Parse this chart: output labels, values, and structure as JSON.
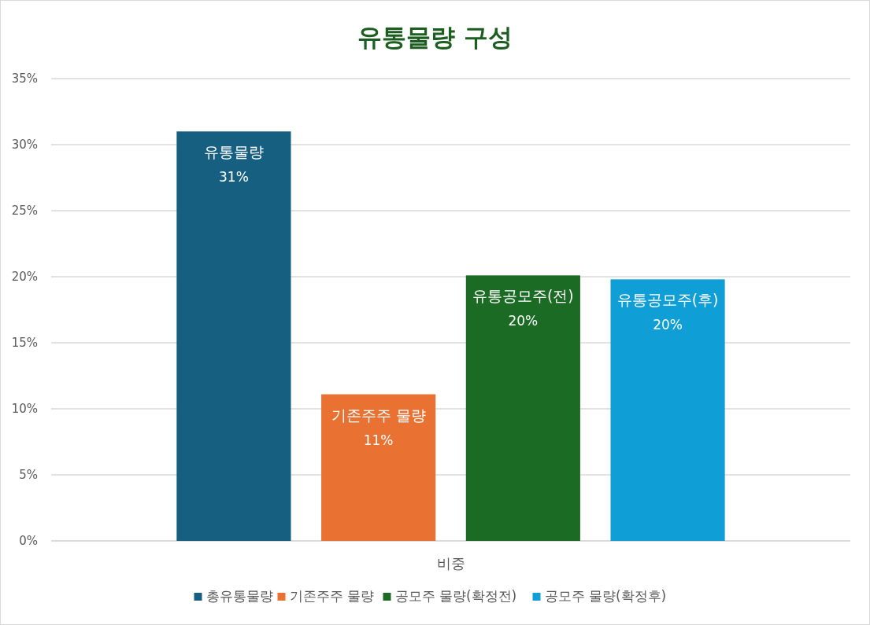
{
  "chart_data": {
    "type": "bar",
    "title": "유통물량 구성",
    "categories": [
      "비중"
    ],
    "series": [
      {
        "name": "총유통물량",
        "color": "#175f80",
        "values": [
          31
        ],
        "value_labels": [
          "유통물량\n31%"
        ]
      },
      {
        "name": "기존주주 물량",
        "color": "#e97132",
        "values": [
          11.1
        ],
        "value_labels": [
          "기존주주 물량\n11%"
        ]
      },
      {
        "name": "공모주 물량(확정전)",
        "color": "#1b6b24",
        "values": [
          20.1
        ],
        "value_labels": [
          "유통공모주(전)\n20%"
        ]
      },
      {
        "name": "공모주 물량(확정후)",
        "color": "#0f9ed5",
        "values": [
          19.8
        ],
        "value_labels": [
          "유통공모주(후)\n20%"
        ]
      }
    ],
    "ylim": [
      0,
      35
    ],
    "yticks": [
      {
        "value": 0,
        "label": "0%"
      },
      {
        "value": 5,
        "label": "5%"
      },
      {
        "value": 10,
        "label": "10%"
      },
      {
        "value": 15,
        "label": "15%"
      },
      {
        "value": 20,
        "label": "20%"
      },
      {
        "value": 25,
        "label": "25%"
      },
      {
        "value": 30,
        "label": "30%"
      },
      {
        "value": 35,
        "label": "35%"
      }
    ],
    "grid": "y",
    "legend": "bottom"
  }
}
